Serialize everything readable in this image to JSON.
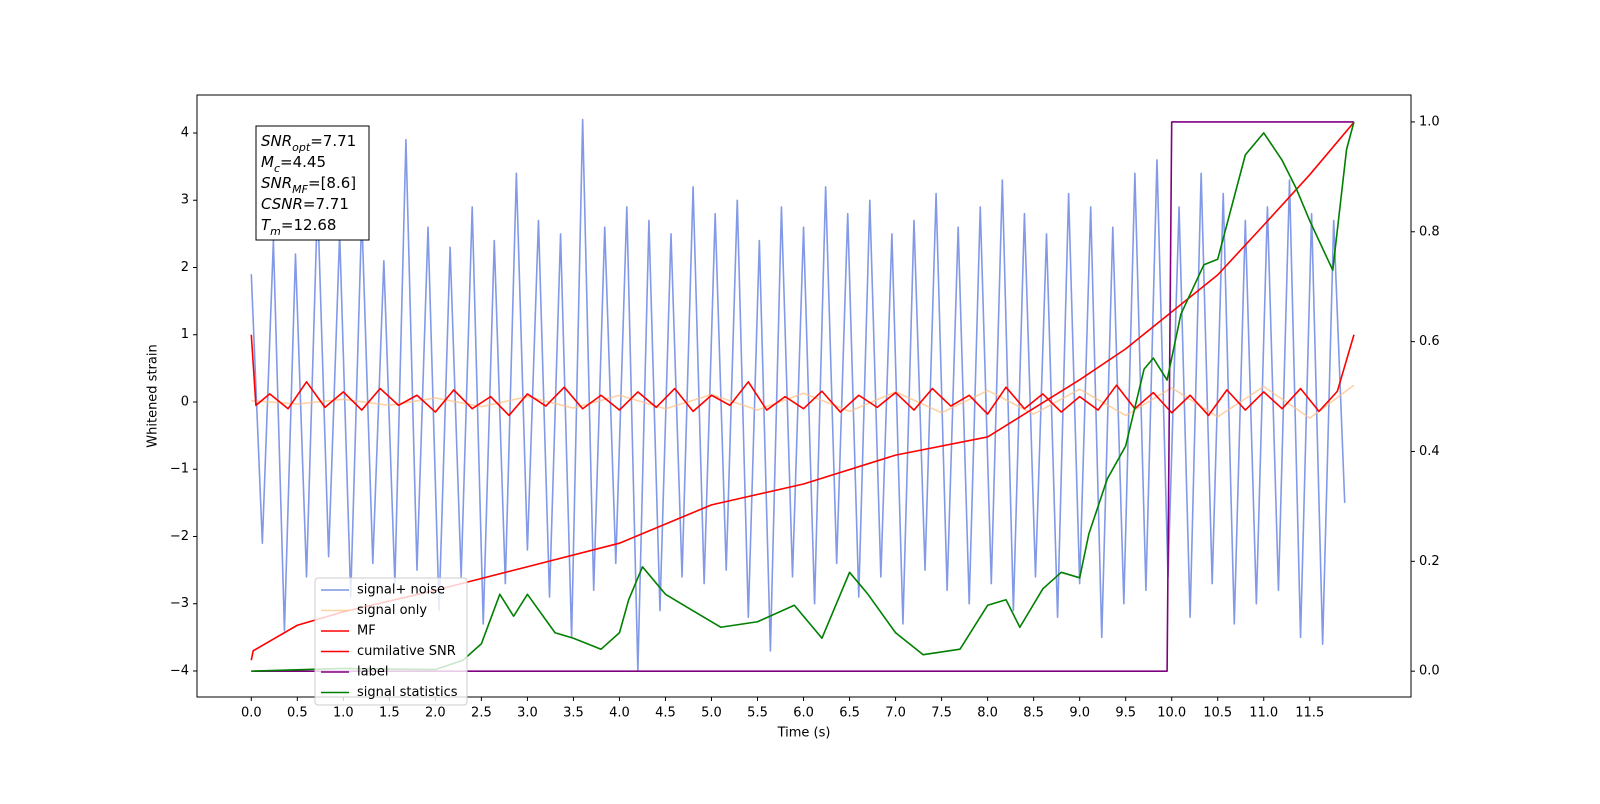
{
  "chart_data": {
    "type": "line",
    "xlabel": "Time (s)",
    "ylabel": "Whitened strain",
    "xlim": [
      -0.59,
      12.6
    ],
    "ylim": [
      -4.387,
      4.565
    ],
    "y2lim": [
      -0.047,
      1.049
    ],
    "xticks": [
      {
        "value": 0,
        "label": "0.0"
      },
      0.5,
      {
        "value": 1,
        "label": "1.0"
      },
      1.5,
      {
        "value": 2,
        "label": "2.0"
      },
      2.5,
      {
        "value": 3,
        "label": "3.0"
      },
      3.5,
      {
        "value": 4,
        "label": "4.0"
      },
      4.5,
      {
        "value": 5,
        "label": "5.0"
      },
      5.5,
      {
        "value": 6,
        "label": "6.0"
      },
      6.5,
      {
        "value": 7,
        "label": "7.0"
      },
      7.5,
      {
        "value": 8,
        "label": "8.0"
      },
      8.5,
      {
        "value": 9,
        "label": "9.0"
      },
      9.5,
      {
        "value": 10,
        "label": "10.0"
      },
      10.5,
      {
        "value": 11,
        "label": "11.0"
      },
      11.5
    ],
    "yticks": [
      {
        "value": -4,
        "label": "−4"
      },
      {
        "value": -3,
        "label": "−3"
      },
      {
        "value": -2,
        "label": "−2"
      },
      {
        "value": -1,
        "label": "−1"
      },
      0,
      1,
      2,
      3,
      4
    ],
    "y2ticks": [
      {
        "value": 0,
        "label": "0.0"
      },
      0.2,
      0.4,
      0.6,
      0.8,
      {
        "value": 1,
        "label": "1.0"
      }
    ],
    "textbox": [
      {
        "name": "SNR",
        "sub": "opt",
        "text": "=7.71"
      },
      {
        "name": "M",
        "sub": "c",
        "text": "=4.45"
      },
      {
        "name": "SNR",
        "sub": "MF",
        "text": "=[8.6]"
      },
      {
        "name": "CSNR",
        "sub": "",
        "text": "=7.71"
      },
      {
        "name": "T",
        "sub": "m",
        "text": "=12.68"
      }
    ],
    "series": [
      {
        "name": "signal+ noise",
        "color": "#7b93e6",
        "x": [
          0,
          0.12,
          0.24,
          0.36,
          0.48,
          0.6,
          0.72,
          0.84,
          0.96,
          1.08,
          1.2,
          1.32,
          1.44,
          1.56,
          1.68,
          1.8,
          1.92,
          2.04,
          2.16,
          2.28,
          2.4,
          2.52,
          2.64,
          2.76,
          2.88,
          3,
          3.12,
          3.24,
          3.36,
          3.48,
          3.6,
          3.72,
          3.84,
          3.96,
          4.08,
          4.2,
          4.32,
          4.44,
          4.56,
          4.68,
          4.8,
          4.92,
          5.04,
          5.16,
          5.28,
          5.4,
          5.52,
          5.64,
          5.76,
          5.88,
          6,
          6.12,
          6.24,
          6.36,
          6.48,
          6.6,
          6.72,
          6.84,
          6.96,
          7.08,
          7.2,
          7.32,
          7.44,
          7.56,
          7.68,
          7.8,
          7.92,
          8.04,
          8.16,
          8.28,
          8.4,
          8.52,
          8.64,
          8.76,
          8.88,
          9,
          9.12,
          9.24,
          9.36,
          9.48,
          9.6,
          9.72,
          9.84,
          9.96,
          10.08,
          10.2,
          10.32,
          10.44,
          10.56,
          10.68,
          10.8,
          10.92,
          11.04,
          11.16,
          11.28,
          11.4,
          11.52,
          11.64,
          11.76,
          11.88
        ],
        "values": [
          1.9,
          -2.1,
          2.4,
          -3.4,
          2.2,
          -2.6,
          3.0,
          -2.3,
          2.5,
          -2.9,
          2.8,
          -2.4,
          2.1,
          -2.7,
          3.9,
          -2.5,
          2.6,
          -3.1,
          2.3,
          -2.6,
          2.9,
          -3.3,
          2.4,
          -2.7,
          3.4,
          -2.2,
          2.7,
          -2.9,
          2.5,
          -3.5,
          4.2,
          -2.8,
          2.6,
          -2.4,
          2.9,
          -4.0,
          2.7,
          -3.1,
          2.5,
          -2.6,
          3.2,
          -2.7,
          2.8,
          -2.5,
          3.0,
          -3.2,
          2.4,
          -3.7,
          2.9,
          -2.6,
          2.6,
          -3.0,
          3.2,
          -2.4,
          2.8,
          -2.9,
          3.0,
          -2.6,
          2.5,
          -3.3,
          2.7,
          -2.5,
          3.1,
          -2.8,
          2.6,
          -3.0,
          2.9,
          -2.7,
          3.3,
          -3.1,
          2.8,
          -2.6,
          2.5,
          -3.2,
          3.1,
          -2.7,
          2.9,
          -3.5,
          2.6,
          -3.0,
          3.4,
          -2.8,
          3.6,
          -2.6,
          2.9,
          -3.2,
          3.4,
          -2.7,
          3.1,
          -3.3,
          2.7,
          -3.0,
          2.9,
          -2.8,
          3.3,
          -3.5,
          2.8,
          -3.6,
          2.7,
          -1.5
        ]
      },
      {
        "name": "signal only",
        "color": "#ffbf80",
        "x": [
          0,
          0.5,
          1,
          1.5,
          2,
          2.5,
          3,
          3.5,
          4,
          4.5,
          5,
          5.5,
          6,
          6.5,
          7,
          7.5,
          8,
          8.5,
          9,
          9.5,
          10,
          10.5,
          11,
          11.5,
          11.98
        ],
        "values": [
          0.02,
          -0.03,
          0.04,
          -0.05,
          0.06,
          -0.07,
          0.08,
          -0.09,
          0.1,
          -0.1,
          0.11,
          -0.12,
          0.13,
          -0.14,
          0.15,
          -0.16,
          0.17,
          -0.18,
          0.19,
          -0.2,
          0.21,
          -0.22,
          0.23,
          -0.24,
          0.25
        ]
      },
      {
        "name": "MF",
        "color": "#ff0000",
        "x": [
          0,
          0.05,
          0.2,
          0.4,
          0.6,
          0.8,
          1,
          1.2,
          1.4,
          1.6,
          1.8,
          2,
          2.2,
          2.4,
          2.6,
          2.8,
          3,
          3.2,
          3.4,
          3.6,
          3.8,
          4,
          4.2,
          4.4,
          4.6,
          4.8,
          5,
          5.2,
          5.4,
          5.6,
          5.8,
          6,
          6.2,
          6.4,
          6.6,
          6.8,
          7,
          7.2,
          7.4,
          7.6,
          7.8,
          8,
          8.2,
          8.4,
          8.6,
          8.8,
          9,
          9.2,
          9.4,
          9.6,
          9.8,
          10,
          10.2,
          10.4,
          10.6,
          10.8,
          11,
          11.2,
          11.4,
          11.6,
          11.8,
          11.98
        ],
        "values": [
          1.0,
          -0.05,
          0.12,
          -0.1,
          0.3,
          -0.08,
          0.15,
          -0.12,
          0.2,
          -0.05,
          0.1,
          -0.15,
          0.18,
          -0.1,
          0.08,
          -0.2,
          0.12,
          -0.06,
          0.22,
          -0.1,
          0.1,
          -0.12,
          0.15,
          -0.08,
          0.2,
          -0.14,
          0.1,
          -0.05,
          0.3,
          -0.12,
          0.08,
          -0.1,
          0.16,
          -0.15,
          0.1,
          -0.08,
          0.14,
          -0.12,
          0.2,
          -0.06,
          0.1,
          -0.18,
          0.22,
          -0.1,
          0.12,
          -0.15,
          0.08,
          -0.12,
          0.25,
          -0.1,
          0.14,
          -0.16,
          0.1,
          -0.2,
          0.18,
          -0.12,
          0.15,
          -0.1,
          0.2,
          -0.14,
          0.16,
          1.0
        ]
      },
      {
        "name": "cumilative SNR",
        "color": "#ff0000",
        "x": [
          0,
          0.02,
          0.5,
          1,
          2,
          3,
          4,
          5,
          6,
          7,
          8,
          9,
          9.5,
          10,
          10.5,
          11,
          11.5,
          11.98
        ],
        "values": [
          -3.84,
          -3.7,
          -3.32,
          -3.12,
          -2.8,
          -2.45,
          -2.1,
          -1.53,
          -1.22,
          -0.79,
          -0.52,
          0.33,
          0.79,
          1.34,
          1.89,
          2.63,
          3.38,
          4.16
        ]
      },
      {
        "name": "label",
        "color": "#800080",
        "axis": "y2",
        "x": [
          0,
          9.95,
          10,
          11.98
        ],
        "values": [
          0,
          0,
          1,
          1
        ]
      },
      {
        "name": "signal statistics",
        "color": "#008000",
        "axis": "y2",
        "x": [
          0,
          1,
          2,
          2.3,
          2.5,
          2.7,
          2.85,
          3,
          3.3,
          3.5,
          3.8,
          4,
          4.1,
          4.25,
          4.5,
          4.8,
          5.1,
          5.5,
          5.9,
          6.2,
          6.5,
          6.7,
          7,
          7.3,
          7.7,
          8,
          8.2,
          8.35,
          8.6,
          8.8,
          9,
          9.1,
          9.3,
          9.5,
          9.7,
          9.8,
          9.95,
          10.1,
          10.35,
          10.5,
          10.8,
          11,
          11.2,
          11.35,
          11.5,
          11.75,
          11.9,
          11.98
        ],
        "values": [
          0,
          0.005,
          0.003,
          0.02,
          0.05,
          0.14,
          0.1,
          0.14,
          0.07,
          0.06,
          0.04,
          0.07,
          0.13,
          0.19,
          0.14,
          0.11,
          0.08,
          0.09,
          0.12,
          0.06,
          0.18,
          0.14,
          0.07,
          0.03,
          0.04,
          0.12,
          0.13,
          0.08,
          0.15,
          0.18,
          0.17,
          0.25,
          0.35,
          0.41,
          0.55,
          0.57,
          0.53,
          0.65,
          0.74,
          0.75,
          0.94,
          0.98,
          0.93,
          0.88,
          0.82,
          0.73,
          0.95,
          1.0
        ]
      }
    ]
  }
}
